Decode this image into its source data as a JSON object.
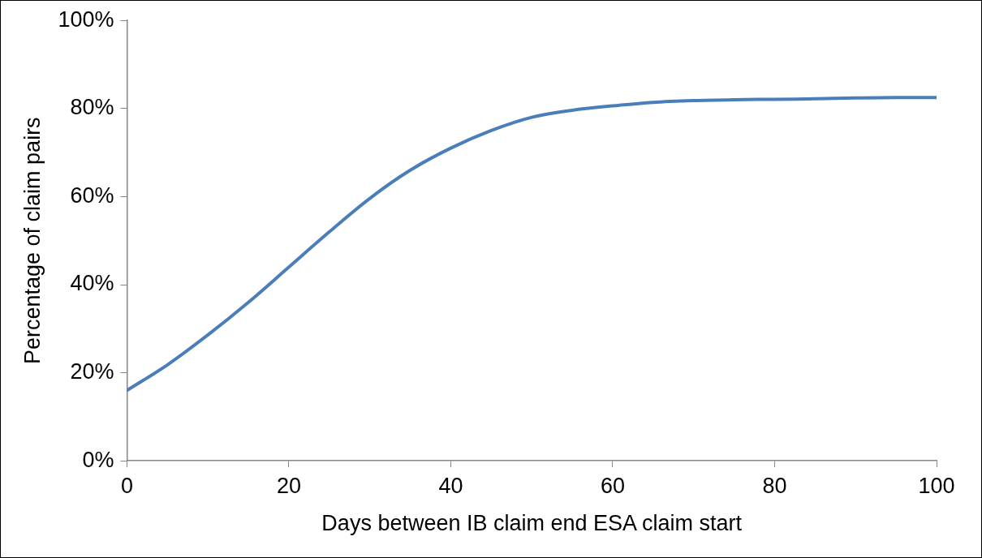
{
  "chart_data": {
    "type": "line",
    "xlabel": "Days between IB claim end ESA claim start",
    "ylabel": "Percentage of claim pairs",
    "x": [
      0,
      5,
      10,
      15,
      20,
      25,
      30,
      35,
      40,
      45,
      50,
      55,
      60,
      65,
      70,
      75,
      80,
      85,
      90,
      95,
      100
    ],
    "series": [
      {
        "color": "#4a7ebb",
        "values": [
          16,
          21.8,
          28.6,
          36,
          44,
          52,
          59.6,
          66,
          71,
          75,
          78,
          79.6,
          80.6,
          81.4,
          81.8,
          82,
          82.1,
          82.2,
          82.4,
          82.5,
          82.5
        ]
      }
    ],
    "xlim": [
      0,
      100
    ],
    "xticks": [
      0,
      20,
      40,
      60,
      80,
      100
    ],
    "ylim": [
      0,
      100
    ],
    "yticks": [
      {
        "value": 0,
        "label": "0%"
      },
      {
        "value": 20,
        "label": "20%"
      },
      {
        "value": 40,
        "label": "40%"
      },
      {
        "value": 60,
        "label": "60%"
      },
      {
        "value": 80,
        "label": "80%"
      },
      {
        "value": 100,
        "label": "100%"
      }
    ],
    "grid": false,
    "legend": false,
    "marker": "none",
    "line_style": "solid"
  }
}
